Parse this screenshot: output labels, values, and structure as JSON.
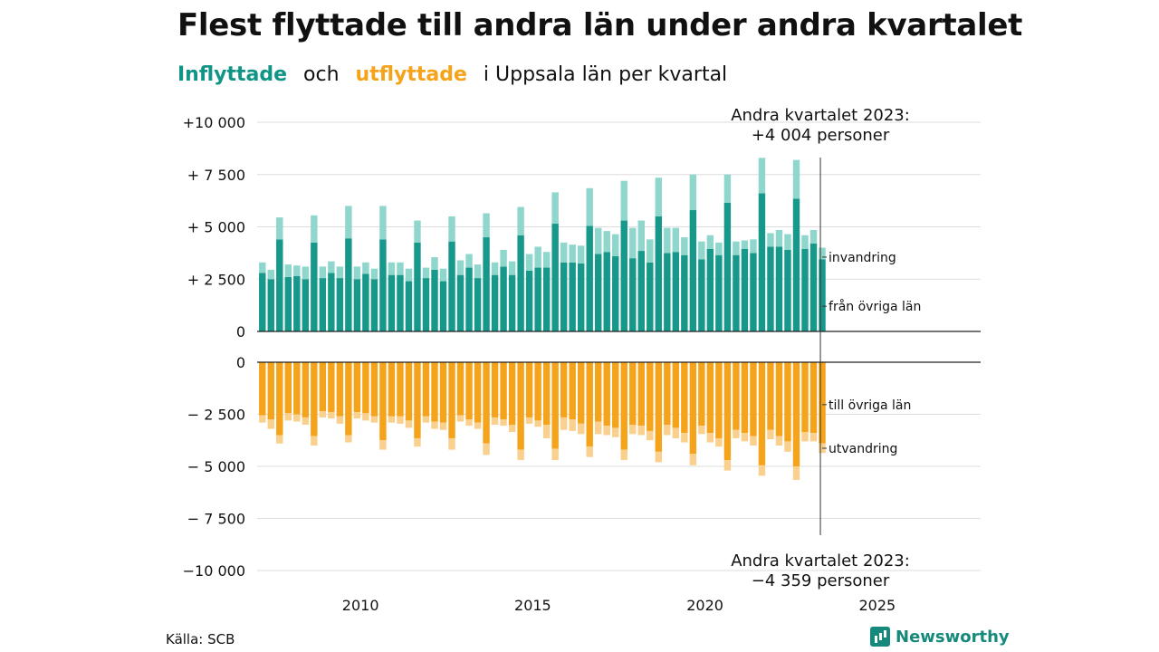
{
  "title": "Flest flyttade till andra län under andra kvartalet",
  "subtitle": {
    "inflow_word": "Inflyttade",
    "and_word": "och",
    "outflow_word": "utflyttade",
    "rest": "i Uppsala  län  per  kvartal"
  },
  "source": "Källa: SCB",
  "brand": {
    "name": "Newsworthy",
    "icon": "bar-chart-icon"
  },
  "colors": {
    "inflow_dark": "#16998a",
    "inflow_light": "#8fd6cc",
    "outflow_dark": "#f5a31a",
    "outflow_light": "#f9d08e",
    "grid": "#dddddd",
    "axis": "#222222"
  },
  "chart_data": {
    "type": "bar",
    "subtype": "diverging stacked bar",
    "x_start_year": 2007,
    "x_start_quarter": 1,
    "x_tick_labels": [
      "2010",
      "2015",
      "2020",
      "2025"
    ],
    "x_ticks": [
      2010,
      2015,
      2020,
      2025
    ],
    "xlim": [
      2007,
      2028
    ],
    "top_panel": {
      "ylim": [
        0,
        10000
      ],
      "y_ticks": [
        0,
        2500,
        5000,
        7500,
        10000
      ],
      "y_tick_labels": [
        "0",
        "+ 2 500",
        "+ 5 000",
        "+ 7 500",
        "+10 000"
      ],
      "series": [
        {
          "name": "från övriga län",
          "values": [
            2800,
            2500,
            4400,
            2600,
            2650,
            2500,
            4250,
            2550,
            2800,
            2550,
            4450,
            2500,
            2750,
            2500,
            4400,
            2700,
            2700,
            2400,
            4250,
            2550,
            2950,
            2400,
            4300,
            2700,
            3050,
            2550,
            4500,
            2700,
            3100,
            2700,
            4600,
            2900,
            3050,
            3050,
            5150,
            3300,
            3300,
            3250,
            5050,
            3700,
            3800,
            3600,
            5300,
            3500,
            3850,
            3300,
            5500,
            3750,
            3800,
            3650,
            5800,
            3450,
            3950,
            3650,
            6150,
            3650,
            3950,
            3750,
            6600,
            4050,
            4050,
            3900,
            6350,
            3950,
            4200,
            3450
          ]
        },
        {
          "name": "invandring",
          "values": [
            500,
            450,
            1050,
            600,
            500,
            600,
            1300,
            550,
            550,
            550,
            1550,
            600,
            550,
            500,
            1600,
            600,
            600,
            600,
            1050,
            500,
            600,
            600,
            1200,
            700,
            650,
            650,
            1150,
            600,
            800,
            650,
            1350,
            800,
            1000,
            750,
            1500,
            950,
            850,
            850,
            1800,
            1250,
            1000,
            1050,
            1900,
            1450,
            1450,
            1100,
            1850,
            1200,
            1150,
            850,
            1700,
            850,
            650,
            600,
            1350,
            650,
            400,
            650,
            1700,
            650,
            800,
            750,
            1850,
            650,
            650,
            554
          ]
        }
      ]
    },
    "bottom_panel": {
      "ylim": [
        -10000,
        0
      ],
      "y_ticks": [
        0,
        -2500,
        -5000,
        -7500,
        -10000
      ],
      "y_tick_labels": [
        "0",
        "− 2 500",
        "− 5 000",
        "− 7 500",
        "−10 000"
      ],
      "series": [
        {
          "name": "till övriga län",
          "values": [
            -2550,
            -2750,
            -3500,
            -2450,
            -2500,
            -2650,
            -3550,
            -2350,
            -2400,
            -2600,
            -3500,
            -2400,
            -2450,
            -2600,
            -3750,
            -2600,
            -2600,
            -2800,
            -3650,
            -2600,
            -2850,
            -2900,
            -3650,
            -2550,
            -2750,
            -2900,
            -3900,
            -2650,
            -2750,
            -3000,
            -4200,
            -2650,
            -2800,
            -3000,
            -4150,
            -2650,
            -2750,
            -2950,
            -4050,
            -2850,
            -3050,
            -3150,
            -4200,
            -3000,
            -3050,
            -3300,
            -4300,
            -3000,
            -3150,
            -3400,
            -4400,
            -3050,
            -3400,
            -3650,
            -4700,
            -3250,
            -3400,
            -3550,
            -4950,
            -3250,
            -3550,
            -3800,
            -5000,
            -3350,
            -3400,
            -3900
          ]
        },
        {
          "name": "utvandring",
          "values": [
            -350,
            -450,
            -400,
            -350,
            -350,
            -350,
            -450,
            -300,
            -300,
            -350,
            -350,
            -300,
            -350,
            -300,
            -450,
            -300,
            -350,
            -350,
            -400,
            -300,
            -350,
            -350,
            -550,
            -300,
            -300,
            -300,
            -550,
            -350,
            -300,
            -350,
            -500,
            -300,
            -300,
            -650,
            -550,
            -600,
            -550,
            -500,
            -500,
            -600,
            -450,
            -450,
            -500,
            -450,
            -450,
            -450,
            -500,
            -500,
            -500,
            -450,
            -550,
            -400,
            -450,
            -400,
            -500,
            -400,
            -400,
            -450,
            -500,
            -450,
            -450,
            -500,
            -650,
            -450,
            -400,
            -459
          ]
        }
      ]
    },
    "annotations": [
      {
        "id": "top",
        "lines": [
          "Andra kvartalet 2023:",
          "+4 004 personer"
        ]
      },
      {
        "id": "bottom",
        "lines": [
          "Andra kvartalet 2023:",
          "−4 359 personer"
        ]
      }
    ],
    "end_labels": [
      "invandring",
      "från övriga län",
      "till övriga län",
      "utvandring"
    ]
  }
}
